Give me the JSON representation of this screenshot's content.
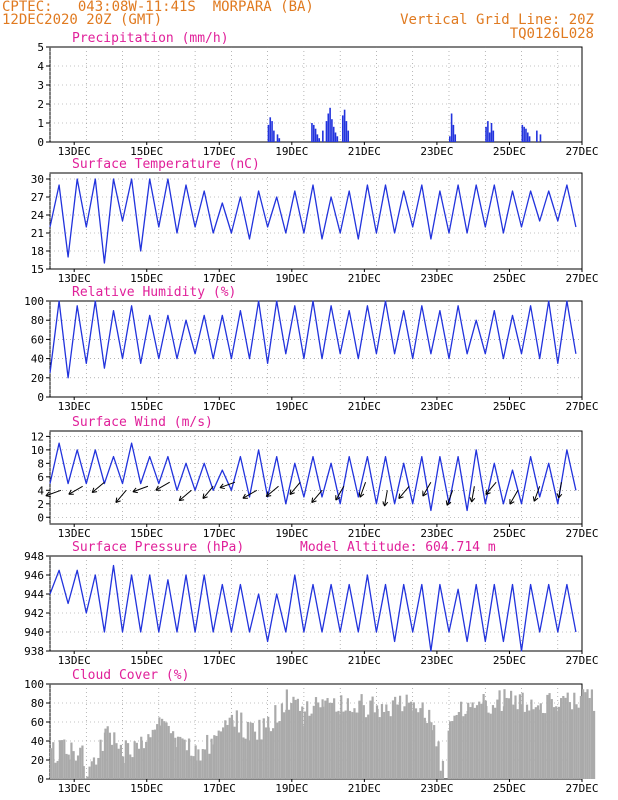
{
  "header": {
    "line1_left": "CPTEC:   043:08W-11:41S  MORPARA (BA)",
    "line2_left": "12DEC2020 20Z (GMT)",
    "line1_right": "Vertical Grid Line: 20Z",
    "line2_right": "TQ0126L028"
  },
  "colors": {
    "series": "#2233dd",
    "title": "#e0209a",
    "header": "#e07a20",
    "cloud": "#aaaaaa",
    "grid": "#888888"
  },
  "x_ticks": [
    "13DEC",
    "15DEC",
    "17DEC",
    "19DEC",
    "21DEC",
    "23DEC",
    "25DEC",
    "27DEC"
  ],
  "chart_data": [
    {
      "type": "bar",
      "title": "Precipitation (mm/h)",
      "ylim": [
        0,
        5
      ],
      "yticks": [
        0,
        1,
        2,
        3,
        4,
        5
      ],
      "x_unit": "days since 12DEC 20Z",
      "x": [
        6.0,
        6.05,
        6.1,
        6.15,
        6.25,
        6.3,
        7.2,
        7.25,
        7.3,
        7.35,
        7.4,
        7.5,
        7.6,
        7.65,
        7.7,
        7.75,
        7.8,
        7.85,
        7.9,
        8.05,
        8.1,
        8.15,
        8.2,
        11.0,
        11.05,
        11.1,
        11.15,
        12.0,
        12.05,
        12.1,
        12.15,
        12.2,
        13.0,
        13.05,
        13.1,
        13.15,
        13.2,
        13.4,
        13.5
      ],
      "values": [
        0.9,
        1.3,
        1.1,
        0.6,
        0.4,
        0.2,
        1.0,
        0.9,
        0.7,
        0.4,
        0.2,
        0.6,
        1.1,
        1.5,
        1.8,
        1.2,
        0.8,
        0.5,
        0.3,
        1.4,
        1.7,
        1.1,
        0.6,
        0.3,
        1.5,
        0.9,
        0.4,
        0.8,
        1.1,
        0.5,
        1.0,
        0.6,
        0.9,
        0.8,
        0.7,
        0.5,
        0.3,
        0.6,
        0.4
      ]
    },
    {
      "type": "line",
      "title": "Surface Temperature (nC)",
      "ylim": [
        15,
        31
      ],
      "yticks": [
        15,
        18,
        21,
        24,
        27,
        30
      ],
      "peaks": [
        29,
        30,
        30,
        30,
        30,
        30,
        30,
        29,
        28,
        26,
        27,
        28,
        27,
        28,
        29,
        27,
        28,
        29,
        29,
        28,
        29,
        28,
        29,
        29,
        29,
        28,
        28,
        28,
        29,
        28
      ],
      "troughs": [
        22,
        17,
        22,
        16,
        23,
        18,
        22,
        21,
        22,
        21,
        21,
        20,
        22,
        21,
        21,
        20,
        21,
        20,
        21,
        21,
        22,
        20,
        21,
        21,
        22,
        21,
        22,
        23,
        23,
        22
      ]
    },
    {
      "type": "line",
      "title": "Relative Humidity (%)",
      "ylim": [
        0,
        100
      ],
      "yticks": [
        0,
        20,
        40,
        60,
        80,
        100
      ],
      "peaks": [
        100,
        95,
        100,
        90,
        95,
        85,
        85,
        80,
        85,
        85,
        90,
        100,
        100,
        95,
        100,
        95,
        90,
        95,
        100,
        90,
        95,
        90,
        95,
        80,
        90,
        85,
        95,
        100,
        100,
        80
      ],
      "troughs": [
        25,
        20,
        35,
        30,
        40,
        35,
        40,
        40,
        45,
        40,
        40,
        40,
        35,
        45,
        40,
        40,
        45,
        40,
        45,
        45,
        40,
        45,
        40,
        45,
        45,
        40,
        45,
        40,
        35,
        45
      ]
    },
    {
      "type": "line",
      "title": "Surface Wind (m/s)",
      "ylim": [
        -1,
        12.8
      ],
      "yticks": [
        0,
        2,
        4,
        6,
        8,
        10,
        12
      ],
      "peaks": [
        11,
        10,
        10,
        9,
        11,
        9,
        9,
        8,
        8,
        7,
        9,
        10,
        9,
        8,
        9,
        8,
        9,
        9,
        9,
        8,
        9,
        9,
        9,
        10,
        8,
        7,
        9,
        8,
        10,
        9
      ],
      "troughs": [
        5,
        5,
        5,
        5,
        5,
        5,
        5,
        4,
        4,
        4,
        4,
        3,
        3,
        2,
        3,
        3,
        2,
        3,
        2,
        2,
        2,
        1,
        2,
        1,
        2,
        2,
        2,
        3,
        2,
        4
      ]
    },
    {
      "type": "line",
      "title": "Surface Pressure (hPa)",
      "annotation": "Model Altitude: 604.714 m",
      "ylim": [
        938,
        948
      ],
      "yticks": [
        938,
        940,
        942,
        944,
        946,
        948
      ],
      "peaks": [
        946.5,
        946.5,
        946,
        947,
        946,
        946,
        945.5,
        946,
        946,
        945,
        945,
        944,
        944,
        946,
        945,
        945,
        945,
        946,
        945,
        945,
        945,
        945,
        944.5,
        945,
        945,
        945,
        945,
        945,
        945,
        944
      ],
      "troughs": [
        944,
        943,
        942,
        940,
        940,
        940,
        940,
        940,
        940,
        940,
        940,
        940,
        939,
        940,
        940,
        940,
        940,
        940,
        940,
        939,
        940,
        938,
        940,
        939,
        939,
        939,
        938,
        940,
        940,
        940
      ]
    },
    {
      "type": "area",
      "title": "Cloud Cover (%)",
      "ylim": [
        0,
        100
      ],
      "yticks": [
        0,
        20,
        40,
        60,
        80,
        100
      ],
      "x": [
        0,
        0.5,
        0.9,
        1.0,
        1.5,
        2.0,
        2.5,
        3.0,
        3.5,
        4.0,
        4.5,
        5.0,
        5.5,
        6.0,
        6.5,
        7.0,
        7.5,
        8.0,
        8.5,
        9.0,
        9.5,
        10.0,
        10.5,
        10.9,
        11.0,
        11.5,
        12.0,
        12.5,
        13.0,
        13.5,
        14.0,
        15.0
      ],
      "values": [
        40,
        45,
        35,
        10,
        60,
        40,
        50,
        70,
        55,
        35,
        55,
        80,
        60,
        70,
        95,
        80,
        95,
        92,
        90,
        88,
        90,
        92,
        70,
        5,
        85,
        88,
        92,
        95,
        95,
        90,
        95,
        95
      ]
    }
  ]
}
